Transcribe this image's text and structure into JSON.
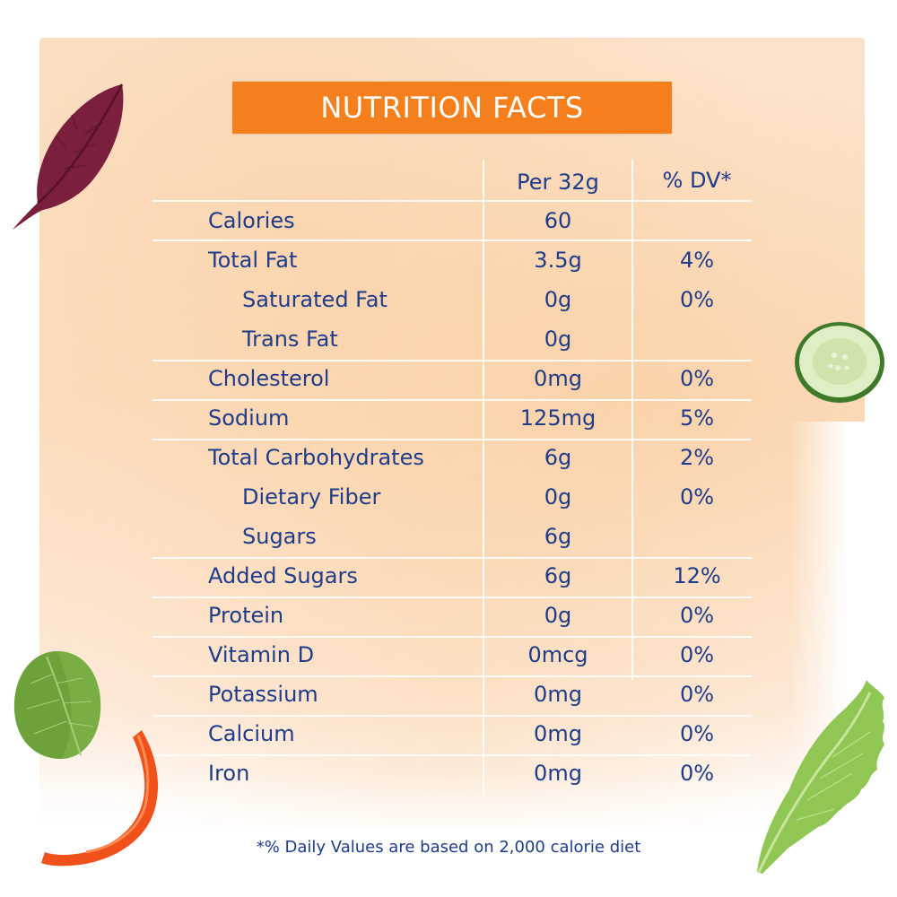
{
  "title": "NUTRITION FACTS",
  "columns": {
    "amount_header": "Per 32g",
    "dv_header": "% DV*"
  },
  "rows": [
    {
      "label": "Calories",
      "amount": "60",
      "dv": ""
    },
    {
      "label": "Total Fat",
      "amount": "3.5g",
      "dv": "4%"
    },
    {
      "label": "Saturated Fat",
      "amount": "0g",
      "dv": "0%"
    },
    {
      "label": "Trans Fat",
      "amount": "0g",
      "dv": ""
    },
    {
      "label": "Cholesterol",
      "amount": "0mg",
      "dv": "0%"
    },
    {
      "label": "Sodium",
      "amount": "125mg",
      "dv": "5%"
    },
    {
      "label": "Total Carbohydrates",
      "amount": "6g",
      "dv": "2%"
    },
    {
      "label": "Dietary Fiber",
      "amount": "0g",
      "dv": "0%"
    },
    {
      "label": "Sugars",
      "amount": "6g",
      "dv": ""
    },
    {
      "label": "Added Sugars",
      "amount": "6g",
      "dv": "12%"
    },
    {
      "label": "Protein",
      "amount": "0g",
      "dv": "0%"
    },
    {
      "label": "Vitamin D",
      "amount": "0mcg",
      "dv": "0%"
    },
    {
      "label": "Potassium",
      "amount": "0mg",
      "dv": "0%"
    },
    {
      "label": "Calcium",
      "amount": "0mg",
      "dv": "0%"
    },
    {
      "label": "Iron",
      "amount": "0mg",
      "dv": "0%"
    }
  ],
  "footnote": "*% Daily Values are based on 2,000 calorie diet",
  "colors": {
    "accent": "#f47f1c",
    "text": "#1f3c8a",
    "background": "#fce3c8"
  },
  "decorations": [
    "beet-leaf-image",
    "cucumber-slice-image",
    "basil-leaf-image",
    "red-pepper-strip-image",
    "lettuce-leaf-image"
  ]
}
